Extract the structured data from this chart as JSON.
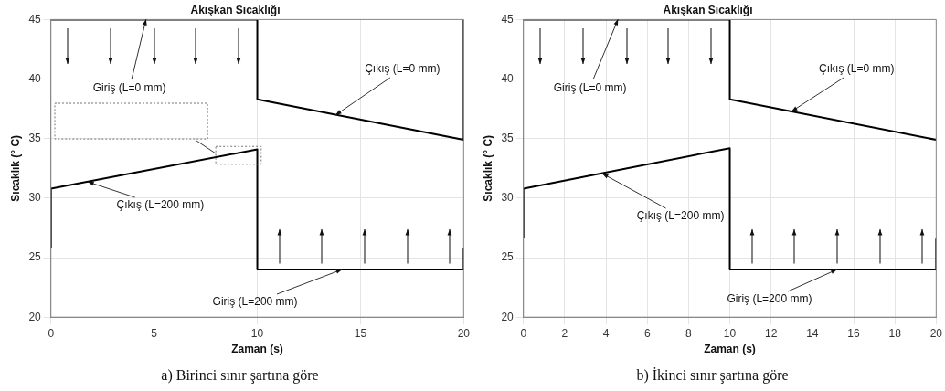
{
  "chart_data": [
    {
      "type": "line",
      "title": "Akışkan Sıcaklığı",
      "xlabel": "Zaman (s)",
      "ylabel": "Sıcaklık (° C)",
      "xlim": [
        0,
        20
      ],
      "ylim": [
        20,
        45
      ],
      "xticks": [
        0,
        5,
        10,
        15,
        20
      ],
      "yticks": [
        20,
        25,
        30,
        35,
        40,
        45
      ],
      "grid": true,
      "series": [
        {
          "color": "#000000",
          "x": [
            0,
            10,
            10,
            20,
            20
          ],
          "values": [
            45,
            45,
            38.3,
            34.9,
            45
          ]
        },
        {
          "color": "#000000",
          "x": [
            0,
            0,
            10,
            10,
            20,
            20
          ],
          "values": [
            25.8,
            30.8,
            34.1,
            24,
            24,
            25.8
          ]
        }
      ],
      "annotations": [
        {
          "text": "Giriş (L=0 mm)",
          "x": 4.6,
          "y": 45
        },
        {
          "text": "Çıkış (L=0 mm)",
          "x": 13.8,
          "y": 37
        },
        {
          "text": "Çıkış (L=200 mm)",
          "x": 1.8,
          "y": 31.4
        },
        {
          "text": "Giriş (L=200 mm)",
          "x": 14.1,
          "y": 24
        },
        "a) Birinci sınır şartına göre"
      ]
    },
    {
      "type": "line",
      "title": "Akışkan Sıcaklığı",
      "xlabel": "Zaman (s)",
      "ylabel": "Sıcaklık (° C)",
      "xlim": [
        0,
        20
      ],
      "ylim": [
        20,
        45
      ],
      "xticks": [
        0,
        2,
        4,
        6,
        8,
        10,
        12,
        14,
        16,
        18,
        20
      ],
      "yticks": [
        20,
        25,
        30,
        35,
        40,
        45
      ],
      "grid": true,
      "series": [
        {
          "color": "#000000",
          "x": [
            0,
            10,
            10,
            20
          ],
          "values": [
            45,
            45,
            38.3,
            34.9
          ]
        },
        {
          "color": "#000000",
          "x": [
            0,
            0,
            10,
            10,
            20,
            20
          ],
          "values": [
            26.7,
            30.8,
            34.2,
            24,
            24,
            26.6
          ]
        }
      ],
      "annotations": [
        {
          "text": "Giriş (L=0 mm)",
          "x": 4.6,
          "y": 45
        },
        {
          "text": "Çıkış (L=0 mm)",
          "x": 13,
          "y": 37.3
        },
        {
          "text": "Çıkış (L=200 mm)",
          "x": 3.8,
          "y": 32.1
        },
        {
          "text": "Giriş (L=200 mm)",
          "x": 15.2,
          "y": 24
        },
        "b) İkinci sınır şartına göre"
      ]
    }
  ]
}
